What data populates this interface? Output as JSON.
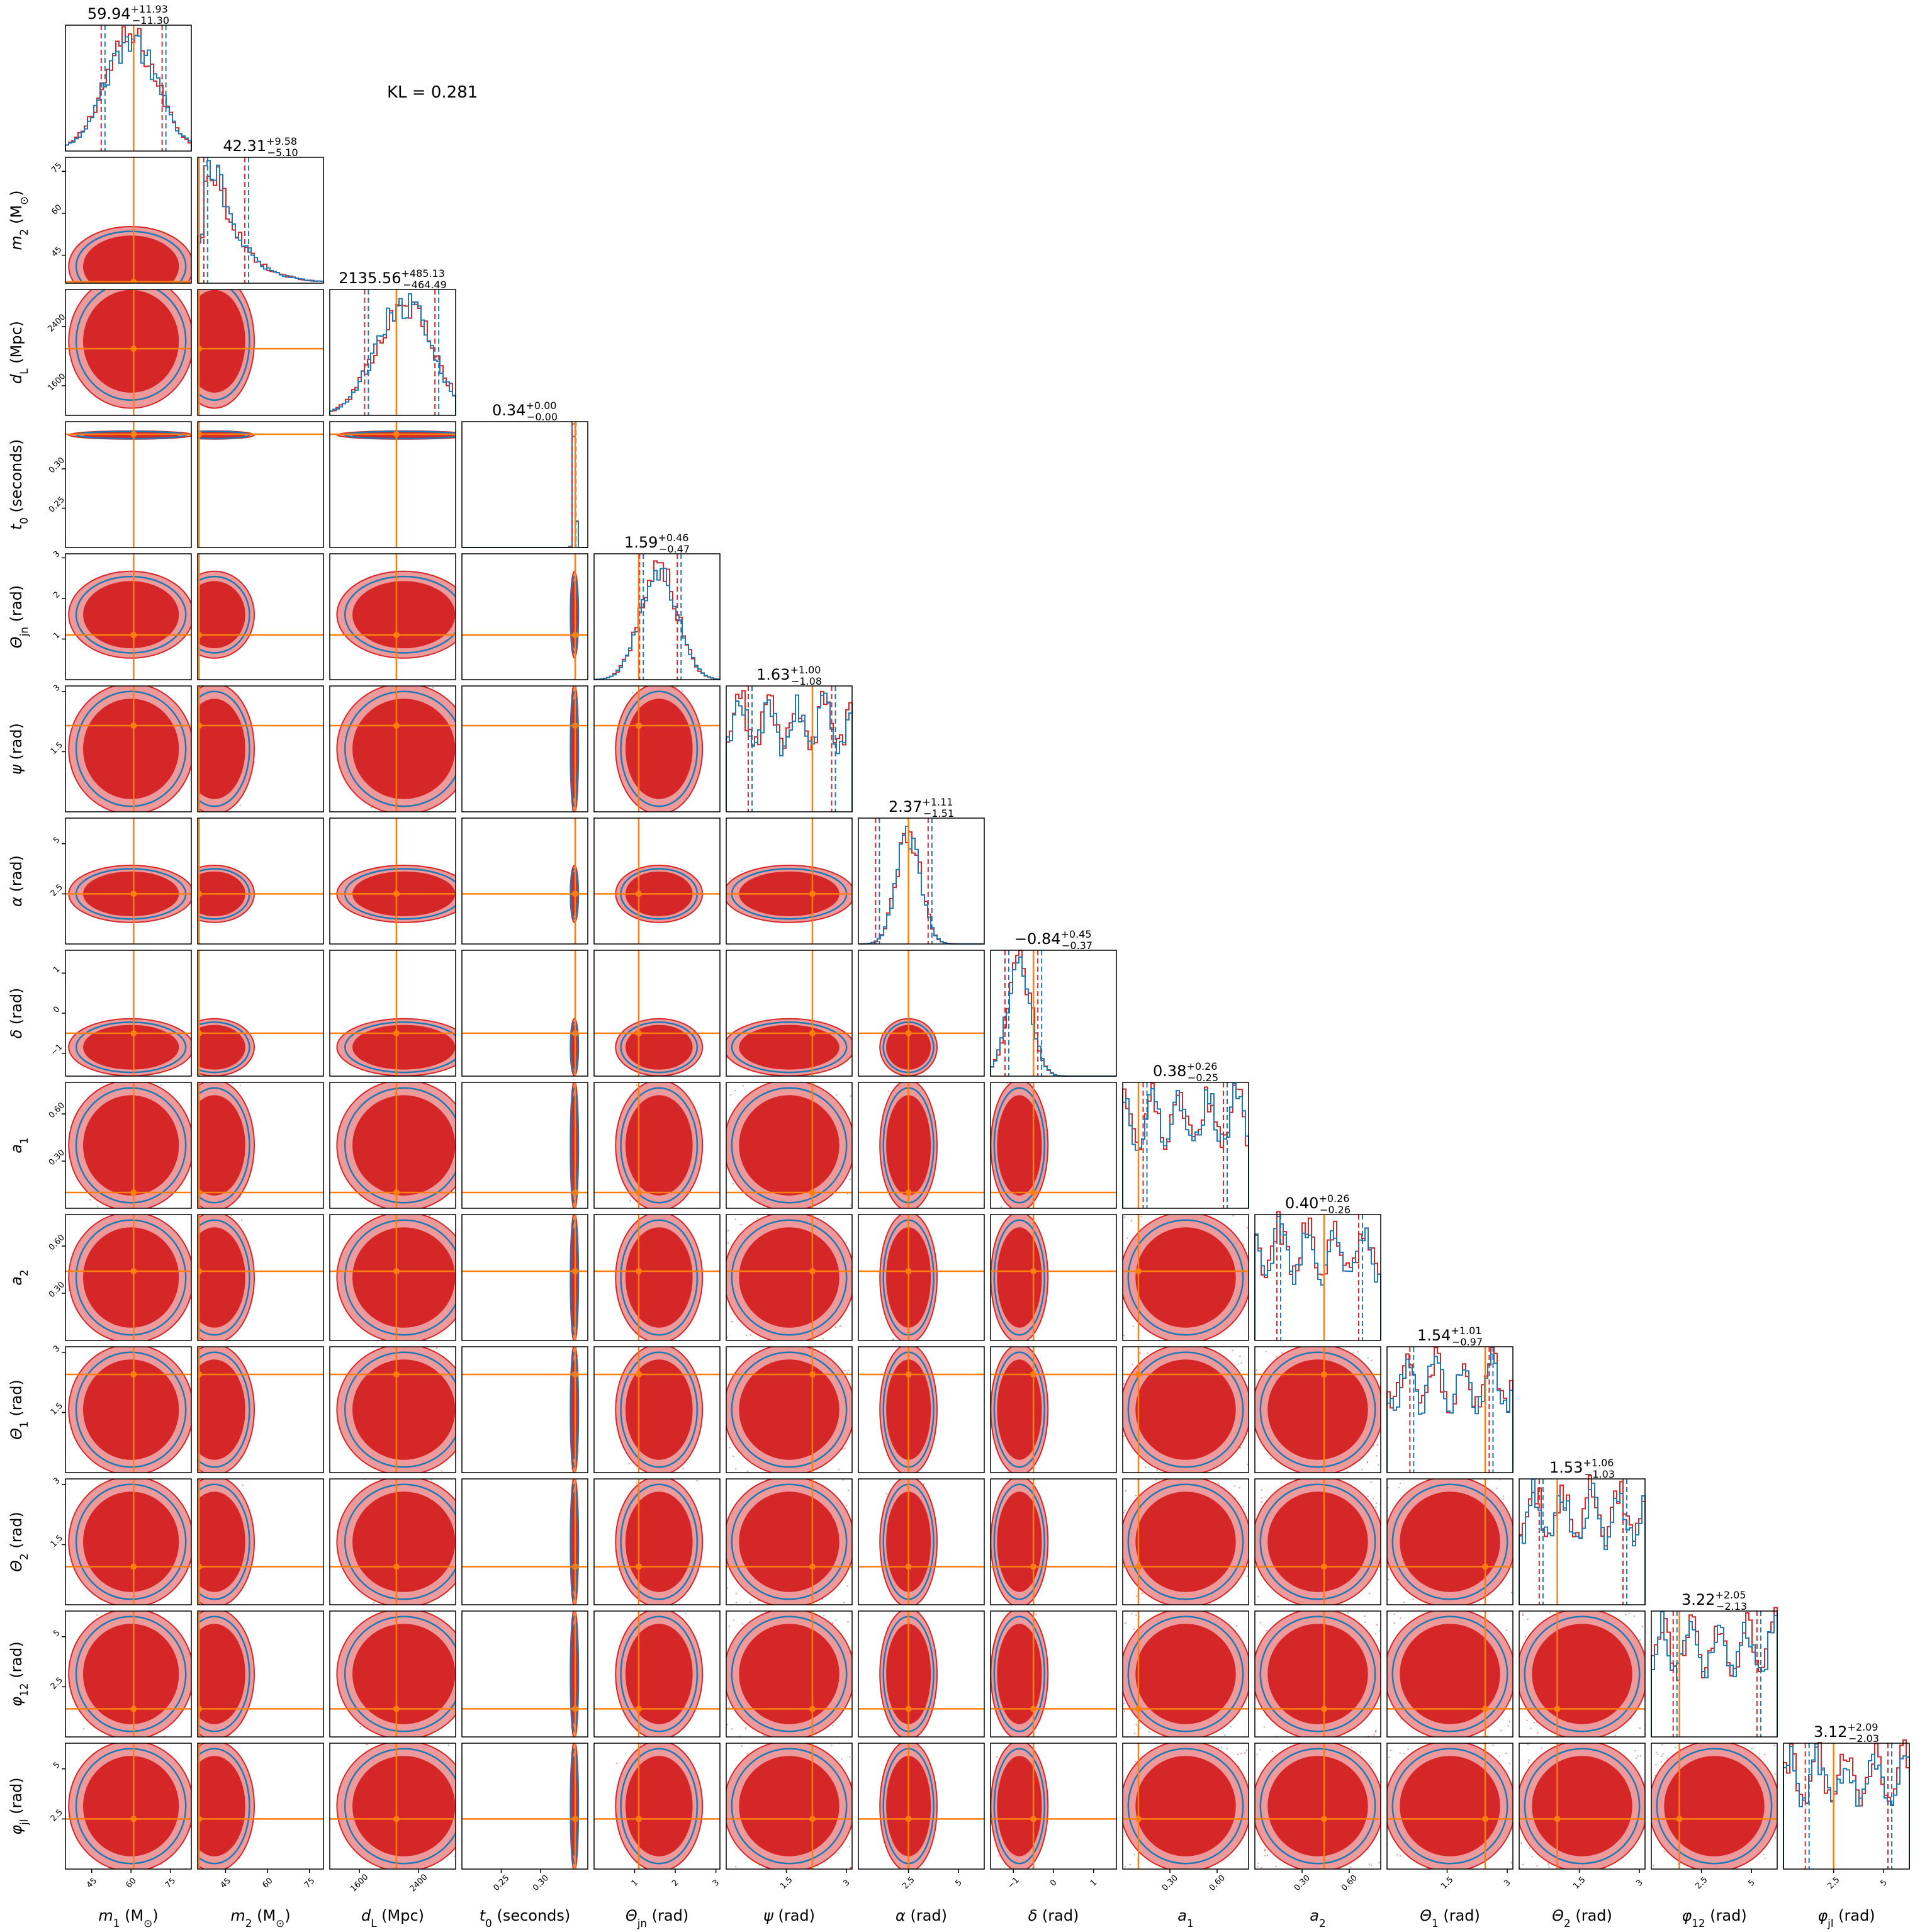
{
  "annotation": "KL = 0.281",
  "colors": {
    "red": "#d62728",
    "red_light": "#ec9a9b",
    "blue": "#1f77b4",
    "orange": "#ff7f0e",
    "axes": "#000000"
  },
  "chart_data": {
    "type": "corner",
    "parameters": [
      {
        "label": "m_1 (M_⊙)",
        "lo": 35,
        "hi": 83,
        "ticks": [
          45,
          60,
          75
        ],
        "median": "59.94",
        "plus": "+11.93",
        "minus": "−11.30",
        "truth": 61,
        "mode": 60,
        "spread": 10,
        "kind": "normal"
      },
      {
        "label": "m_2 (M_⊙)",
        "lo": 35,
        "hi": 80,
        "ticks": [
          45,
          60,
          75
        ],
        "median": "42.31",
        "plus": "+9.58",
        "minus": "−5.10",
        "truth": 35.5,
        "mode": 42,
        "spread": 6,
        "kind": "skew"
      },
      {
        "label": "d_L (Mpc)",
        "lo": 1200,
        "hi": 2900,
        "ticks": [
          1600,
          2400
        ],
        "median": "2135.56",
        "plus": "+485.13",
        "minus": "−464.49",
        "truth": 2100,
        "mode": 2200,
        "spread": 380,
        "kind": "normal"
      },
      {
        "label": "t_0 (seconds)",
        "lo": 0.2,
        "hi": 0.36,
        "ticks": [
          0.25,
          0.3
        ],
        "median": "0.34",
        "plus": "+0.00",
        "minus": "−0.00",
        "truth": 0.344,
        "mode": 0.343,
        "spread": 0.002,
        "kind": "narrow"
      },
      {
        "label": "Θ_jn (rad)",
        "lo": 0,
        "hi": 3.1,
        "ticks": [
          1,
          2,
          3
        ],
        "median": "1.59",
        "plus": "+0.46",
        "minus": "−0.47",
        "truth": 1.1,
        "mode": 1.6,
        "spread": 0.45,
        "kind": "normal"
      },
      {
        "label": "ψ (rad)",
        "lo": 0,
        "hi": 3.14,
        "ticks": [
          1.5,
          3.0
        ],
        "median": "1.63",
        "plus": "+1.00",
        "minus": "−1.08",
        "truth": 2.15,
        "mode": 1.6,
        "spread": 2,
        "kind": "uniform"
      },
      {
        "label": "α (rad)",
        "lo": 0,
        "hi": 6.28,
        "ticks": [
          2.5,
          5.0
        ],
        "median": "2.37",
        "plus": "+1.11",
        "minus": "−1.51",
        "truth": 2.5,
        "mode": 2.5,
        "spread": 0.6,
        "kind": "normal"
      },
      {
        "label": "δ (rad)",
        "lo": -1.57,
        "hi": 1.57,
        "ticks": [
          -1,
          0,
          1
        ],
        "median": "−0.84",
        "plus": "+0.45",
        "minus": "−0.37",
        "truth": -0.5,
        "mode": -0.85,
        "spread": 0.3,
        "kind": "normal"
      },
      {
        "label": "a_1",
        "lo": 0,
        "hi": 0.8,
        "ticks": [
          0.3,
          0.6
        ],
        "median": "0.38",
        "plus": "+0.26",
        "minus": "−0.25",
        "truth": 0.1,
        "mode": 0.35,
        "spread": 0.3,
        "kind": "uniform"
      },
      {
        "label": "a_2",
        "lo": 0,
        "hi": 0.8,
        "ticks": [
          0.3,
          0.6
        ],
        "median": "0.40",
        "plus": "+0.26",
        "minus": "−0.26",
        "truth": 0.44,
        "mode": 0.4,
        "spread": 0.3,
        "kind": "uniform"
      },
      {
        "label": "Θ_1 (rad)",
        "lo": 0,
        "hi": 3.14,
        "ticks": [
          1.5,
          3.0
        ],
        "median": "1.54",
        "plus": "+1.01",
        "minus": "−0.97",
        "truth": 2.45,
        "mode": 1.5,
        "spread": 1.5,
        "kind": "uniform"
      },
      {
        "label": "Θ_2 (rad)",
        "lo": 0,
        "hi": 3.14,
        "ticks": [
          1.5,
          3.0
        ],
        "median": "1.53",
        "plus": "+1.06",
        "minus": "−1.03",
        "truth": 0.95,
        "mode": 1.5,
        "spread": 1.5,
        "kind": "uniform"
      },
      {
        "label": "φ_12 (rad)",
        "lo": 0,
        "hi": 6.28,
        "ticks": [
          2.5,
          5.0
        ],
        "median": "3.22",
        "plus": "+2.05",
        "minus": "−2.13",
        "truth": 1.4,
        "mode": 3.2,
        "spread": 3,
        "kind": "uniform"
      },
      {
        "label": "φ_jl (rad)",
        "lo": 0,
        "hi": 6.28,
        "ticks": [
          2.5,
          5.0
        ],
        "median": "3.12",
        "plus": "+2.09",
        "minus": "−2.03",
        "truth": 2.5,
        "mode": 3.1,
        "spread": 3,
        "kind": "uniform"
      }
    ]
  }
}
